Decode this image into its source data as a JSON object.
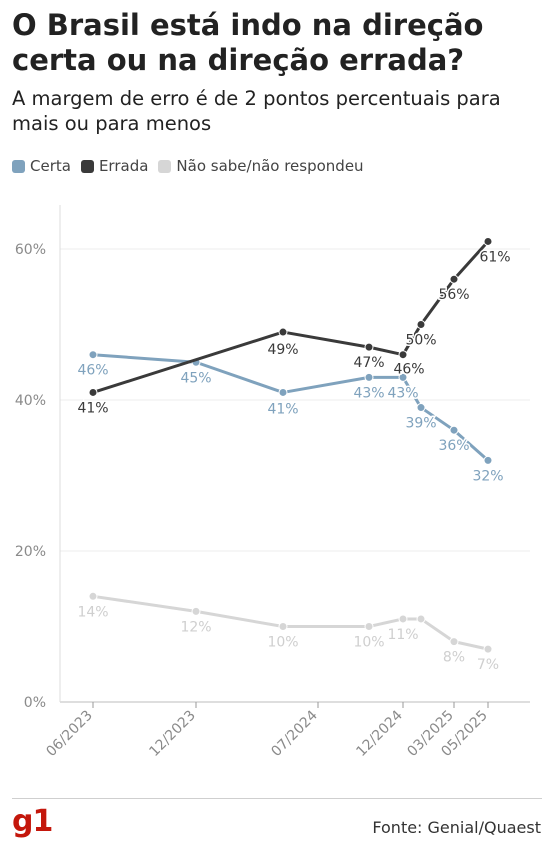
{
  "title": "O Brasil está indo na direção certa ou na direção errada?",
  "subtitle": "A margem de erro é de 2 pontos percentuais para mais ou para menos",
  "source": "Fonte: Genial/Quaest",
  "logo": "g1",
  "colors": {
    "certa": "#7fa2bd",
    "errada": "#3a3a3a",
    "nao_sabe": "#d6d6d6"
  },
  "chart_data": {
    "type": "line",
    "title": "O Brasil está indo na direção certa ou na direção errada?",
    "subtitle": "A margem de erro é de 2 pontos percentuais para mais ou para menos",
    "x": [
      "06/2023",
      "12/2023",
      "07/2024",
      "11/2024",
      "12/2024",
      "01/2025",
      "03/2025",
      "05/2025"
    ],
    "x_ticks": [
      "06/2023",
      "12/2023",
      "07/2024",
      "12/2024",
      "03/2025",
      "05/2025"
    ],
    "y_ticks": [
      "0%",
      "20%",
      "40%",
      "60%"
    ],
    "ylim": [
      0,
      65
    ],
    "grid": true,
    "legend": "top-left",
    "series": [
      {
        "name": "Certa",
        "key": "certa",
        "values": [
          46,
          45,
          41,
          43,
          43,
          39,
          36,
          32
        ],
        "labels": [
          "46%",
          "45%",
          "41%",
          "43%",
          "43%",
          "39%",
          "36%",
          "32%"
        ]
      },
      {
        "name": "Errada",
        "key": "errada",
        "values": [
          41,
          null,
          49,
          47,
          46,
          50,
          56,
          61
        ],
        "labels": [
          "41%",
          null,
          "49%",
          "47%",
          "46%",
          "50%",
          "56%",
          "61%"
        ]
      },
      {
        "name": "Não sabe/não respondeu",
        "key": "nao_sabe",
        "values": [
          14,
          12,
          10,
          10,
          11,
          11,
          8,
          7
        ],
        "labels": [
          "14%",
          "12%",
          "10%",
          "10%",
          "11%",
          null,
          "8%",
          "7%"
        ]
      }
    ]
  }
}
